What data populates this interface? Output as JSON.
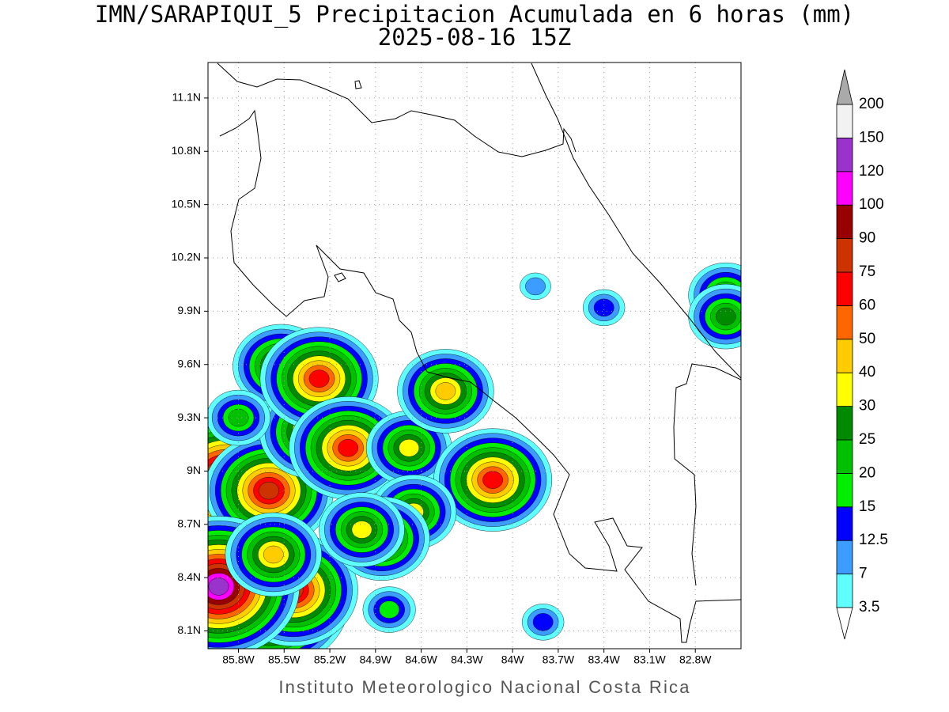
{
  "chart_data": {
    "type": "contour_map",
    "title": "IMN/SARAPIQUI_5 Precipitacion Acumulada en 6 horas (mm)",
    "subtitle": "2025-08-16 15Z",
    "footer": "Instituto Meteorologico Nacional Costa Rica",
    "xlim": [
      -86.0,
      -82.5
    ],
    "ylim": [
      8.0,
      11.3
    ],
    "xticks": [
      {
        "value": -85.8,
        "label": "85.8W"
      },
      {
        "value": -85.5,
        "label": "85.5W"
      },
      {
        "value": -85.2,
        "label": "85.2W"
      },
      {
        "value": -84.9,
        "label": "84.9W"
      },
      {
        "value": -84.6,
        "label": "84.6W"
      },
      {
        "value": -84.3,
        "label": "84.3W"
      },
      {
        "value": -84.0,
        "label": "84W"
      },
      {
        "value": -83.7,
        "label": "83.7W"
      },
      {
        "value": -83.4,
        "label": "83.4W"
      },
      {
        "value": -83.1,
        "label": "83.1W"
      },
      {
        "value": -82.8,
        "label": "82.8W"
      }
    ],
    "yticks": [
      {
        "value": 8.1,
        "label": "8.1N"
      },
      {
        "value": 8.4,
        "label": "8.4N"
      },
      {
        "value": 8.7,
        "label": "8.7N"
      },
      {
        "value": 9.0,
        "label": "9N"
      },
      {
        "value": 9.3,
        "label": "9.3N"
      },
      {
        "value": 9.6,
        "label": "9.6N"
      },
      {
        "value": 9.9,
        "label": "9.9N"
      },
      {
        "value": 10.2,
        "label": "10.2N"
      },
      {
        "value": 10.5,
        "label": "10.5N"
      },
      {
        "value": 10.8,
        "label": "10.8N"
      },
      {
        "value": 11.1,
        "label": "11.1N"
      }
    ],
    "grid": true,
    "colorbar": {
      "levels": [
        3.5,
        7,
        12.5,
        15,
        20,
        25,
        30,
        40,
        50,
        60,
        75,
        90,
        100,
        120,
        150,
        200
      ],
      "colors": [
        "#60ffff",
        "#3c9cff",
        "#0000ff",
        "#00ee00",
        "#00c000",
        "#008a00",
        "#ffff00",
        "#ffcc00",
        "#ff6600",
        "#ff0000",
        "#cc3300",
        "#990000",
        "#ff00ff",
        "#9933cc",
        "#f2f2f2"
      ],
      "under_color": "#ffffff",
      "over_color": "#aaaaaa"
    },
    "cells": [
      {
        "lon": -85.87,
        "lat": 8.94,
        "peak": 120
      },
      {
        "lon": -85.6,
        "lat": 8.89,
        "peak": 75
      },
      {
        "lon": -85.6,
        "lat": 8.28,
        "peak": 120
      },
      {
        "lon": -85.44,
        "lat": 8.33,
        "peak": 75
      },
      {
        "lon": -85.93,
        "lat": 8.35,
        "peak": 120
      },
      {
        "lon": -85.31,
        "lat": 9.22,
        "peak": 50
      },
      {
        "lon": -85.52,
        "lat": 9.59,
        "peak": 40
      },
      {
        "lon": -85.27,
        "lat": 9.52,
        "peak": 60
      },
      {
        "lon": -85.08,
        "lat": 9.13,
        "peak": 60
      },
      {
        "lon": -85.57,
        "lat": 8.53,
        "peak": 40
      },
      {
        "lon": -84.68,
        "lat": 9.13,
        "peak": 30
      },
      {
        "lon": -84.44,
        "lat": 9.45,
        "peak": 40
      },
      {
        "lon": -84.13,
        "lat": 8.95,
        "peak": 60
      },
      {
        "lon": -84.65,
        "lat": 8.77,
        "peak": 30
      },
      {
        "lon": -84.86,
        "lat": 8.62,
        "peak": 40
      },
      {
        "lon": -84.99,
        "lat": 8.67,
        "peak": 30
      },
      {
        "lon": -84.81,
        "lat": 8.22,
        "peak": 15
      },
      {
        "lon": -85.8,
        "lat": 9.3,
        "peak": 20
      },
      {
        "lon": -83.4,
        "lat": 9.92,
        "peak": 12.5
      },
      {
        "lon": -82.6,
        "lat": 9.99,
        "peak": 25
      },
      {
        "lon": -82.6,
        "lat": 9.87,
        "peak": 25
      },
      {
        "lon": -83.8,
        "lat": 8.15,
        "peak": 12.5
      },
      {
        "lon": -83.85,
        "lat": 10.04,
        "peak": 7
      }
    ]
  }
}
